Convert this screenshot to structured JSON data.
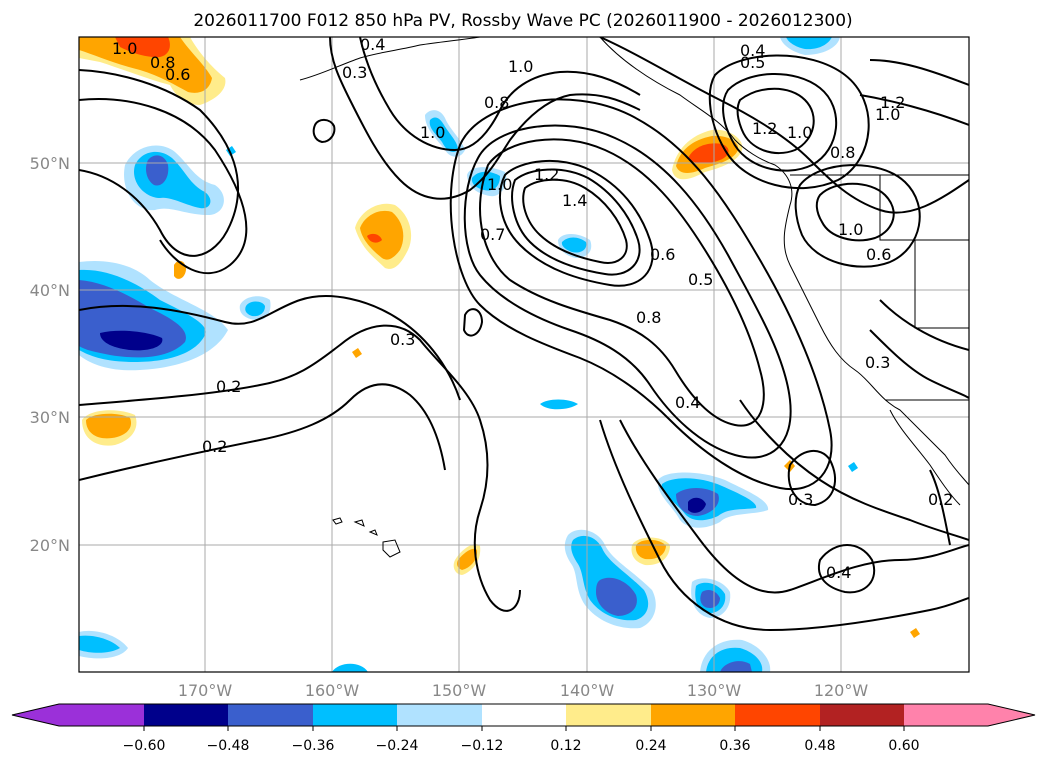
{
  "title": "2026011700 F012 850 hPa PV, Rossby Wave PC (2026011900 - 2026012300)",
  "map": {
    "projection": "cylindrical lat-lon",
    "lat_labels": [
      "50°N",
      "40°N",
      "30°N",
      "20°N"
    ],
    "lon_labels": [
      "170°W",
      "160°W",
      "150°W",
      "140°W",
      "130°W",
      "120°W"
    ]
  },
  "colorbar": {
    "ticks": [
      "−0.60",
      "−0.48",
      "−0.36",
      "−0.24",
      "−0.12",
      "0.12",
      "0.24",
      "0.36",
      "0.48",
      "0.60"
    ],
    "colors": [
      "#9b30d9",
      "#00008b",
      "#3a5fcd",
      "#00bfff",
      "#b0e2ff",
      "#ffffff",
      "#ffec8b",
      "#ffa500",
      "#ff4500",
      "#b22222",
      "#ff82ab"
    ]
  },
  "contour_labels": [
    "1.0",
    "0.8",
    "0.6",
    "0.3",
    "0.4",
    "0.4",
    "0.5",
    "1.0",
    "0.8",
    "1.0",
    "1.2",
    "1.4",
    "0.6",
    "0.5",
    "0.8",
    "0.4",
    "0.3",
    "0.2",
    "0.2",
    "0.7",
    "1.0",
    "1.2",
    "1.0",
    "0.8",
    "1.2",
    "1.0",
    "1.0",
    "0.6",
    "0.3",
    "0.3",
    "0.2",
    "0.4"
  ]
}
